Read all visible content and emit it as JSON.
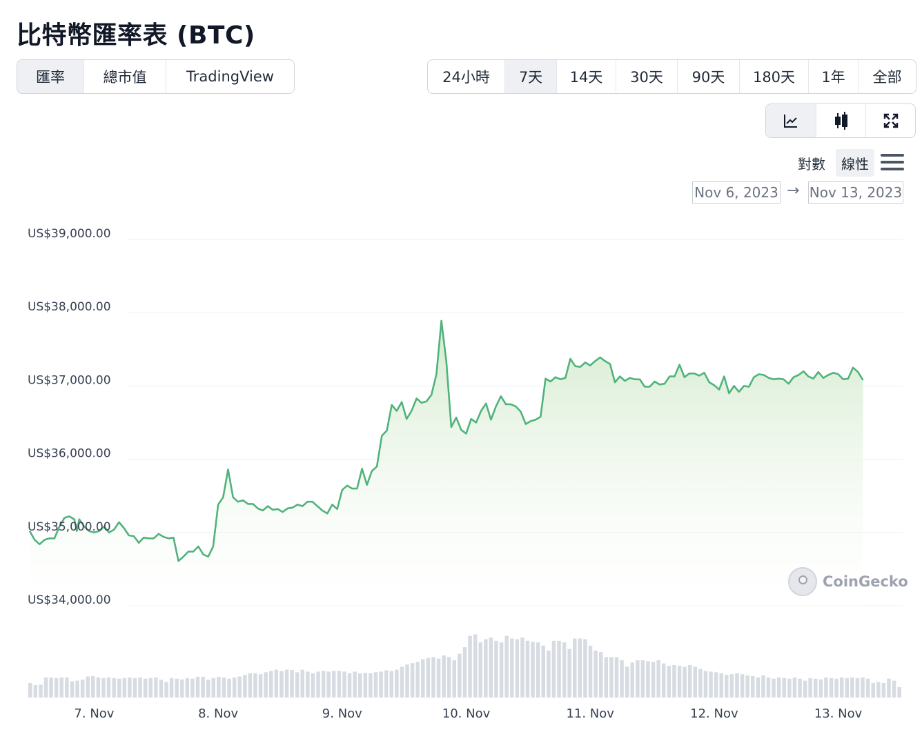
{
  "title": "比特幣匯率表 (BTC)",
  "tabs": [
    {
      "label": "匯率",
      "active": true
    },
    {
      "label": "總市值",
      "active": false
    },
    {
      "label": "TradingView",
      "active": false
    }
  ],
  "ranges": [
    {
      "label": "24小時",
      "active": false
    },
    {
      "label": "7天",
      "active": true
    },
    {
      "label": "14天",
      "active": false
    },
    {
      "label": "30天",
      "active": false
    },
    {
      "label": "90天",
      "active": false
    },
    {
      "label": "180天",
      "active": false
    },
    {
      "label": "1年",
      "active": false
    },
    {
      "label": "全部",
      "active": false
    }
  ],
  "chart_types": [
    {
      "icon": "line-chart-icon",
      "active": true
    },
    {
      "icon": "candlestick-icon",
      "active": false
    },
    {
      "icon": "fullscreen-icon",
      "active": false
    }
  ],
  "scale": {
    "log_label": "對數",
    "linear_label": "線性",
    "selected": "linear"
  },
  "date_range": {
    "from": "Nov 6, 2023",
    "arrow": "→",
    "to": "Nov 13, 2023"
  },
  "watermark": "CoinGecko",
  "colors": {
    "line": "#4fb37b",
    "volume": "#d7dce3",
    "grid": "#eef0f2"
  },
  "chart_data": {
    "type": "area",
    "title": "",
    "xlabel": "",
    "ylabel": "",
    "y_ticks": [
      "US$34,000.00",
      "US$35,000.00",
      "US$36,000.00",
      "US$37,000.00",
      "US$38,000.00",
      "US$39,000.00"
    ],
    "y_tick_values": [
      34000,
      35000,
      36000,
      37000,
      38000,
      39000
    ],
    "ylim": [
      34000,
      39000
    ],
    "x_ticks": [
      "7. Nov",
      "8. Nov",
      "9. Nov",
      "10. Nov",
      "11. Nov",
      "12. Nov",
      "13. Nov"
    ],
    "x_range_days": [
      6.48,
      13.52
    ],
    "grid": true,
    "series": [
      {
        "points": [
          [
            6.48,
            35020
          ],
          [
            6.52,
            34900
          ],
          [
            6.56,
            34840
          ],
          [
            6.6,
            34900
          ],
          [
            6.64,
            34920
          ],
          [
            6.68,
            34920
          ],
          [
            6.72,
            35080
          ],
          [
            6.76,
            35200
          ],
          [
            6.8,
            35220
          ],
          [
            6.84,
            35180
          ],
          [
            6.86,
            35020
          ],
          [
            6.88,
            35180
          ],
          [
            6.92,
            35080
          ],
          [
            6.96,
            35020
          ],
          [
            7.0,
            35000
          ],
          [
            7.04,
            35020
          ],
          [
            7.08,
            35080
          ],
          [
            7.12,
            35000
          ],
          [
            7.16,
            35040
          ],
          [
            7.2,
            35140
          ],
          [
            7.24,
            35060
          ],
          [
            7.28,
            34960
          ],
          [
            7.32,
            34950
          ],
          [
            7.36,
            34860
          ],
          [
            7.4,
            34930
          ],
          [
            7.44,
            34920
          ],
          [
            7.48,
            34920
          ],
          [
            7.52,
            34980
          ],
          [
            7.56,
            34940
          ],
          [
            7.6,
            34920
          ],
          [
            7.64,
            34930
          ],
          [
            7.68,
            34610
          ],
          [
            7.72,
            34670
          ],
          [
            7.76,
            34740
          ],
          [
            7.8,
            34740
          ],
          [
            7.84,
            34810
          ],
          [
            7.88,
            34700
          ],
          [
            7.92,
            34670
          ],
          [
            7.96,
            34810
          ],
          [
            8.0,
            35380
          ],
          [
            8.04,
            35480
          ],
          [
            8.08,
            35860
          ],
          [
            8.12,
            35480
          ],
          [
            8.16,
            35420
          ],
          [
            8.2,
            35440
          ],
          [
            8.24,
            35390
          ],
          [
            8.28,
            35390
          ],
          [
            8.32,
            35330
          ],
          [
            8.36,
            35300
          ],
          [
            8.4,
            35360
          ],
          [
            8.44,
            35310
          ],
          [
            8.48,
            35320
          ],
          [
            8.52,
            35280
          ],
          [
            8.56,
            35330
          ],
          [
            8.6,
            35340
          ],
          [
            8.64,
            35380
          ],
          [
            8.68,
            35360
          ],
          [
            8.72,
            35420
          ],
          [
            8.76,
            35420
          ],
          [
            8.8,
            35360
          ],
          [
            8.84,
            35300
          ],
          [
            8.88,
            35260
          ],
          [
            8.92,
            35380
          ],
          [
            8.96,
            35320
          ],
          [
            9.0,
            35580
          ],
          [
            9.04,
            35640
          ],
          [
            9.08,
            35600
          ],
          [
            9.12,
            35600
          ],
          [
            9.16,
            35870
          ],
          [
            9.2,
            35650
          ],
          [
            9.24,
            35840
          ],
          [
            9.28,
            35900
          ],
          [
            9.32,
            36320
          ],
          [
            9.36,
            36390
          ],
          [
            9.4,
            36740
          ],
          [
            9.44,
            36660
          ],
          [
            9.48,
            36780
          ],
          [
            9.52,
            36550
          ],
          [
            9.56,
            36660
          ],
          [
            9.6,
            36830
          ],
          [
            9.64,
            36770
          ],
          [
            9.68,
            36790
          ],
          [
            9.72,
            36880
          ],
          [
            9.76,
            37160
          ],
          [
            9.8,
            37890
          ],
          [
            9.84,
            37330
          ],
          [
            9.88,
            36440
          ],
          [
            9.92,
            36570
          ],
          [
            9.96,
            36400
          ],
          [
            10.0,
            36350
          ],
          [
            10.04,
            36550
          ],
          [
            10.08,
            36500
          ],
          [
            10.12,
            36660
          ],
          [
            10.16,
            36760
          ],
          [
            10.2,
            36540
          ],
          [
            10.24,
            36720
          ],
          [
            10.28,
            36860
          ],
          [
            10.32,
            36750
          ],
          [
            10.36,
            36750
          ],
          [
            10.4,
            36720
          ],
          [
            10.44,
            36650
          ],
          [
            10.48,
            36480
          ],
          [
            10.52,
            36520
          ],
          [
            10.56,
            36540
          ],
          [
            10.6,
            36580
          ],
          [
            10.64,
            37100
          ],
          [
            10.68,
            37060
          ],
          [
            10.72,
            37120
          ],
          [
            10.76,
            37090
          ],
          [
            10.8,
            37110
          ],
          [
            10.84,
            37370
          ],
          [
            10.88,
            37270
          ],
          [
            10.92,
            37260
          ],
          [
            10.96,
            37320
          ],
          [
            11.0,
            37280
          ],
          [
            11.04,
            37340
          ],
          [
            11.08,
            37390
          ],
          [
            11.12,
            37340
          ],
          [
            11.16,
            37300
          ],
          [
            11.2,
            37050
          ],
          [
            11.24,
            37130
          ],
          [
            11.28,
            37070
          ],
          [
            11.32,
            37110
          ],
          [
            11.36,
            37090
          ],
          [
            11.4,
            37090
          ],
          [
            11.44,
            36990
          ],
          [
            11.48,
            36990
          ],
          [
            11.52,
            37060
          ],
          [
            11.56,
            37020
          ],
          [
            11.6,
            37030
          ],
          [
            11.64,
            37130
          ],
          [
            11.68,
            37130
          ],
          [
            11.72,
            37290
          ],
          [
            11.76,
            37120
          ],
          [
            11.8,
            37170
          ],
          [
            11.84,
            37170
          ],
          [
            11.88,
            37140
          ],
          [
            11.92,
            37180
          ],
          [
            11.96,
            37050
          ],
          [
            12.0,
            37010
          ],
          [
            12.04,
            36950
          ],
          [
            12.08,
            37130
          ],
          [
            12.12,
            36900
          ],
          [
            12.16,
            37000
          ],
          [
            12.2,
            36920
          ],
          [
            12.24,
            37000
          ],
          [
            12.28,
            36990
          ],
          [
            12.32,
            37120
          ],
          [
            12.36,
            37160
          ],
          [
            12.4,
            37150
          ],
          [
            12.44,
            37110
          ],
          [
            12.48,
            37090
          ],
          [
            12.52,
            37100
          ],
          [
            12.56,
            37090
          ],
          [
            12.6,
            37030
          ],
          [
            12.64,
            37120
          ],
          [
            12.68,
            37150
          ],
          [
            12.72,
            37200
          ],
          [
            12.76,
            37130
          ],
          [
            12.8,
            37100
          ],
          [
            12.84,
            37190
          ],
          [
            12.88,
            37110
          ],
          [
            12.92,
            37150
          ],
          [
            12.96,
            37180
          ],
          [
            13.0,
            37160
          ],
          [
            13.04,
            37090
          ],
          [
            13.08,
            37100
          ],
          [
            13.12,
            37250
          ],
          [
            13.16,
            37190
          ],
          [
            13.2,
            37080
          ]
        ]
      }
    ],
    "volume_relative": [
      0.45,
      0.38,
      0.4,
      0.62,
      0.62,
      0.6,
      0.62,
      0.62,
      0.5,
      0.52,
      0.55,
      0.65,
      0.66,
      0.62,
      0.6,
      0.62,
      0.6,
      0.58,
      0.6,
      0.62,
      0.6,
      0.62,
      0.58,
      0.6,
      0.62,
      0.55,
      0.48,
      0.6,
      0.58,
      0.56,
      0.6,
      0.58,
      0.64,
      0.64,
      0.55,
      0.6,
      0.64,
      0.62,
      0.58,
      0.62,
      0.65,
      0.7,
      0.75,
      0.75,
      0.72,
      0.78,
      0.82,
      0.86,
      0.82,
      0.86,
      0.85,
      0.78,
      0.86,
      0.8,
      0.75,
      0.8,
      0.82,
      0.8,
      0.82,
      0.82,
      0.8,
      0.75,
      0.8,
      0.74,
      0.76,
      0.75,
      0.78,
      0.8,
      0.84,
      0.82,
      0.86,
      0.95,
      1.02,
      1.06,
      1.1,
      1.18,
      1.22,
      1.25,
      1.2,
      1.3,
      1.25,
      1.15,
      1.35,
      1.55,
      1.9,
      1.95,
      1.7,
      1.8,
      1.85,
      1.75,
      1.7,
      1.9,
      1.82,
      1.8,
      1.85,
      1.75,
      1.72,
      1.7,
      1.6,
      1.45,
      1.75,
      1.75,
      1.7,
      1.5,
      1.82,
      1.82,
      1.8,
      1.6,
      1.45,
      1.4,
      1.25,
      1.25,
      1.25,
      1.15,
      0.95,
      1.08,
      1.15,
      1.15,
      1.12,
      1.1,
      1.15,
      1.05,
      0.98,
      1.0,
      0.98,
      0.95,
      1.0,
      0.95,
      0.88,
      0.82,
      0.8,
      0.78,
      0.75,
      0.7,
      0.72,
      0.75,
      0.72,
      0.68,
      0.66,
      0.62,
      0.68,
      0.62,
      0.58,
      0.62,
      0.6,
      0.58,
      0.62,
      0.58,
      0.52,
      0.6,
      0.58,
      0.56,
      0.62,
      0.6,
      0.58,
      0.62,
      0.6,
      0.62,
      0.6,
      0.62,
      0.58,
      0.45,
      0.48,
      0.45,
      0.58,
      0.52,
      0.32
    ]
  }
}
